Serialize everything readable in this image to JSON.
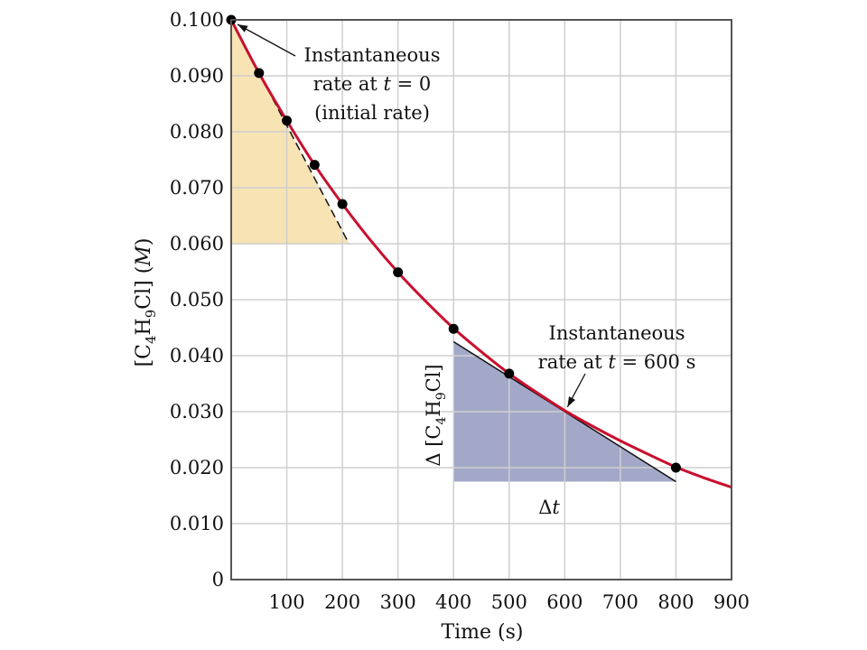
{
  "chart_data": {
    "type": "line",
    "xlabel": "Time (s)",
    "ylabel_parts": {
      "open": "[C",
      "sub1": "4",
      "mid": "H",
      "sub2": "9",
      "close": "Cl] (",
      "unit": "M",
      "end": ")"
    },
    "xlim": [
      0,
      900
    ],
    "ylim": [
      0,
      0.1
    ],
    "x_ticks": [
      100,
      200,
      300,
      400,
      500,
      600,
      700,
      800,
      900
    ],
    "y_ticks": [
      "0",
      "0.010",
      "0.020",
      "0.030",
      "0.040",
      "0.050",
      "0.060",
      "0.070",
      "0.080",
      "0.090",
      "0.100"
    ],
    "y_tick_values": [
      0,
      0.01,
      0.02,
      0.03,
      0.04,
      0.05,
      0.06,
      0.07,
      0.08,
      0.09,
      0.1
    ],
    "grid": true,
    "points": [
      {
        "x": 0,
        "y": 0.1
      },
      {
        "x": 50,
        "y": 0.0905
      },
      {
        "x": 100,
        "y": 0.082
      },
      {
        "x": 150,
        "y": 0.0741
      },
      {
        "x": 200,
        "y": 0.0671
      },
      {
        "x": 300,
        "y": 0.0549
      },
      {
        "x": 400,
        "y": 0.0448
      },
      {
        "x": 500,
        "y": 0.0368
      },
      {
        "x": 800,
        "y": 0.02
      }
    ],
    "curve": [
      {
        "x": 0,
        "y": 0.1
      },
      {
        "x": 50,
        "y": 0.0905
      },
      {
        "x": 100,
        "y": 0.082
      },
      {
        "x": 150,
        "y": 0.0741
      },
      {
        "x": 200,
        "y": 0.0671
      },
      {
        "x": 250,
        "y": 0.0607
      },
      {
        "x": 300,
        "y": 0.0549
      },
      {
        "x": 350,
        "y": 0.0497
      },
      {
        "x": 400,
        "y": 0.0449
      },
      {
        "x": 450,
        "y": 0.0407
      },
      {
        "x": 500,
        "y": 0.0368
      },
      {
        "x": 550,
        "y": 0.0334
      },
      {
        "x": 600,
        "y": 0.0302
      },
      {
        "x": 650,
        "y": 0.0274
      },
      {
        "x": 700,
        "y": 0.0248
      },
      {
        "x": 750,
        "y": 0.0224
      },
      {
        "x": 800,
        "y": 0.0201
      },
      {
        "x": 850,
        "y": 0.0182
      },
      {
        "x": 900,
        "y": 0.0165
      }
    ],
    "tangent_initial": {
      "x1": 0,
      "y1": 0.1,
      "x2": 212,
      "y2": 0.06
    },
    "tangent_600": {
      "x1": 400,
      "y1": 0.0425,
      "x2": 800,
      "y2": 0.0175
    },
    "initial_triangle": [
      [
        0,
        0.1
      ],
      [
        0,
        0.06
      ],
      [
        212,
        0.06
      ]
    ],
    "rate_triangle": [
      [
        400,
        0.0425
      ],
      [
        400,
        0.0175
      ],
      [
        800,
        0.0175
      ]
    ],
    "annotations": {
      "initial": {
        "line1": "Instantaneous",
        "line2_pre": "rate at ",
        "line2_var": "t",
        "line2_post": " = 0",
        "line3": "(initial rate)"
      },
      "at600": {
        "line1": "Instantaneous",
        "line2_pre": "rate at ",
        "line2_var": "t",
        "line2_post": " = 600 s"
      },
      "delta_conc": {
        "pre": "Δ [C",
        "sub1": "4",
        "mid": "H",
        "sub2": "9",
        "post": "Cl]"
      },
      "delta_t": {
        "pre": "Δ",
        "var": "t"
      }
    },
    "colors": {
      "curve": "#c8102e",
      "initial_fill": "#f7e3b3",
      "rate_fill": "#a3a8c8",
      "grid": "#cfcfcf",
      "frame": "#555555"
    }
  }
}
